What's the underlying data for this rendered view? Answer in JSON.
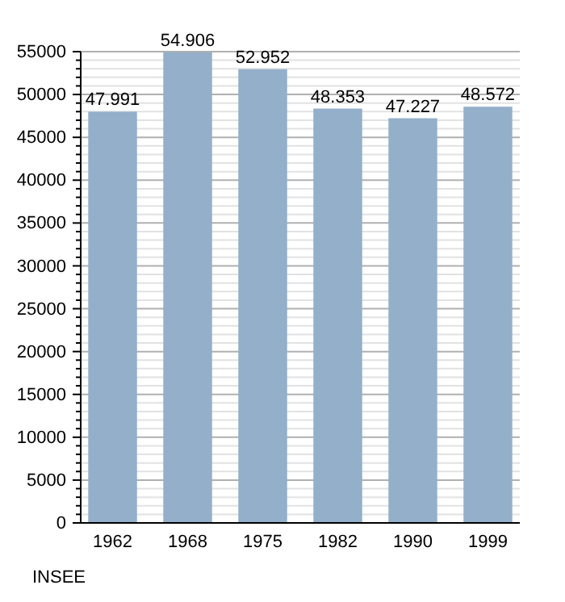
{
  "chart_data": {
    "type": "bar",
    "categories": [
      "1962",
      "1968",
      "1975",
      "1982",
      "1990",
      "1999"
    ],
    "values": [
      47991,
      54906,
      52952,
      48353,
      47227,
      48572
    ],
    "value_labels": [
      "47.991",
      "54.906",
      "52.952",
      "48.353",
      "47.227",
      "48.572"
    ],
    "color": "#93afca",
    "ylim": [
      0,
      55000
    ],
    "yticks": [
      0,
      {
        "value": 1000,
        "label": null
      },
      {
        "value": 2000,
        "label": null
      },
      {
        "value": 3000,
        "label": null
      },
      {
        "value": 4000,
        "label": null
      },
      5000,
      {
        "value": 6000,
        "label": null
      },
      {
        "value": 7000,
        "label": null
      },
      {
        "value": 8000,
        "label": null
      },
      {
        "value": 9000,
        "label": null
      },
      10000,
      {
        "value": 11000,
        "label": null
      },
      {
        "value": 12000,
        "label": null
      },
      {
        "value": 13000,
        "label": null
      },
      {
        "value": 14000,
        "label": null
      },
      15000,
      {
        "value": 16000,
        "label": null
      },
      {
        "value": 17000,
        "label": null
      },
      {
        "value": 18000,
        "label": null
      },
      {
        "value": 19000,
        "label": null
      },
      20000,
      {
        "value": 21000,
        "label": null
      },
      {
        "value": 22000,
        "label": null
      },
      {
        "value": 23000,
        "label": null
      },
      {
        "value": 24000,
        "label": null
      },
      25000,
      {
        "value": 26000,
        "label": null
      },
      {
        "value": 27000,
        "label": null
      },
      {
        "value": 28000,
        "label": null
      },
      {
        "value": 29000,
        "label": null
      },
      30000,
      {
        "value": 31000,
        "label": null
      },
      {
        "value": 32000,
        "label": null
      },
      {
        "value": 33000,
        "label": null
      },
      {
        "value": 34000,
        "label": null
      },
      35000,
      {
        "value": 36000,
        "label": null
      },
      {
        "value": 37000,
        "label": null
      },
      {
        "value": 38000,
        "label": null
      },
      {
        "value": 39000,
        "label": null
      },
      40000,
      {
        "value": 41000,
        "label": null
      },
      {
        "value": 42000,
        "label": null
      },
      {
        "value": 43000,
        "label": null
      },
      {
        "value": 44000,
        "label": null
      },
      45000,
      {
        "value": 46000,
        "label": null
      },
      {
        "value": 47000,
        "label": null
      },
      {
        "value": 48000,
        "label": null
      },
      {
        "value": 49000,
        "label": null
      },
      50000,
      {
        "value": 51000,
        "label": null
      },
      {
        "value": 52000,
        "label": null
      },
      {
        "value": 53000,
        "label": null
      },
      {
        "value": 54000,
        "label": null
      },
      55000
    ],
    "grid": "y",
    "annotations": [
      "INSEE"
    ]
  }
}
